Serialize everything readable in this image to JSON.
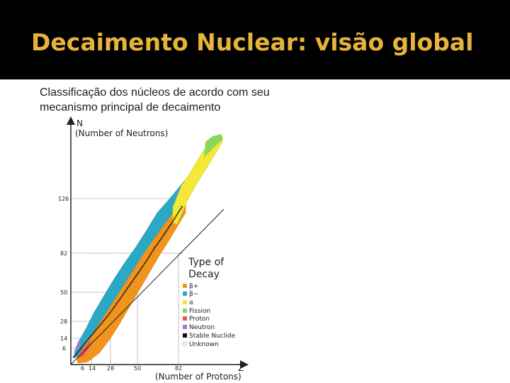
{
  "slide": {
    "title": "Decaimento Nuclear: visão global",
    "subtitle": "Classificação dos núcleos de acordo com seu mecanismo principal de decaimento"
  },
  "chart": {
    "y_axis": {
      "letter": "N",
      "label": "(Number of Neutrons)",
      "ticks": [
        "126",
        "82",
        "50",
        "28",
        "14",
        "6"
      ]
    },
    "x_axis": {
      "letter": "Z",
      "label": "(Number of Protons)",
      "ticks": [
        "6",
        "14",
        "28",
        "50",
        "82"
      ]
    },
    "legend": {
      "title_line1": "Type of",
      "title_line2": "Decay",
      "items": [
        {
          "label": "β+",
          "color": "#f0941e"
        },
        {
          "label": "β−",
          "color": "#2aa8c4"
        },
        {
          "label": "α",
          "color": "#f3e838"
        },
        {
          "label": "Fission",
          "color": "#8ed65a"
        },
        {
          "label": "Proton",
          "color": "#e8555a"
        },
        {
          "label": "Neutron",
          "color": "#a07ad8"
        },
        {
          "label": "Stable Nuclide",
          "color": "#111111"
        },
        {
          "label": "Unknown",
          "color": "#eeeeee"
        }
      ]
    }
  }
}
